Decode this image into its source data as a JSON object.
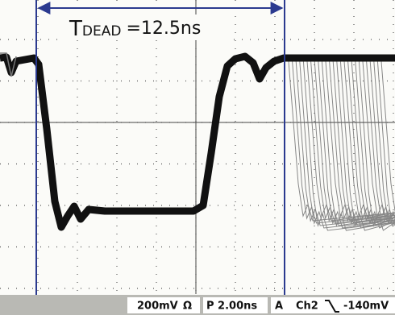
{
  "annotation": {
    "symbol": "T",
    "subscript": "DEAD",
    "value": "=12.5ns"
  },
  "status_bar": {
    "scale": "200mV",
    "impedance": "Ω",
    "timebase": "P 2.00ns",
    "trigger": "A",
    "channel": "Ch2",
    "level": "-140mV"
  }
}
